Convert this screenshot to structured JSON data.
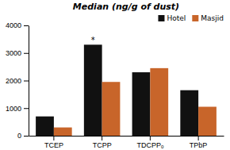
{
  "chart_data": {
    "type": "bar",
    "title": "Median (ng/g of dust)",
    "categories": [
      "TCEP",
      "TCPP",
      "TDCPPₒ",
      "TPbP"
    ],
    "series": [
      {
        "name": "Hotel",
        "color": "#111111",
        "values": [
          700,
          3300,
          2300,
          1650
        ]
      },
      {
        "name": "Masjid",
        "color": "#c8652a",
        "values": [
          300,
          1950,
          2450,
          1050
        ]
      }
    ],
    "ylim": [
      0,
      4000
    ],
    "yticks": [
      0,
      1000,
      2000,
      3000,
      4000
    ],
    "grid": false,
    "legend": "upper right",
    "annotations": [
      {
        "text": "*",
        "series": "Hotel",
        "category": "TCPP"
      }
    ]
  }
}
